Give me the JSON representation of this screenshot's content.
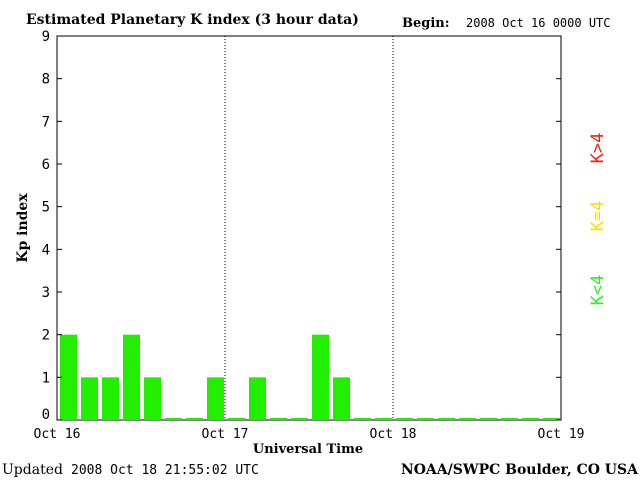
{
  "chart_data": {
    "type": "bar",
    "title": "Estimated Planetary K index (3 hour data)",
    "begin_label": "Begin:",
    "begin_value": "2008 Oct 16 0000 UTC",
    "xlabel": "Universal Time",
    "ylabel": "Kp index",
    "ylim": [
      0,
      9
    ],
    "yticks": [
      "0",
      "1",
      "2",
      "3",
      "4",
      "5",
      "6",
      "7",
      "8",
      "9"
    ],
    "xticks": [
      "Oct 16",
      "Oct 17",
      "Oct 18",
      "Oct 19"
    ],
    "days": 3,
    "intervals_per_day": 8,
    "values": [
      2,
      1,
      1,
      2,
      1,
      0,
      0,
      1,
      0,
      1,
      0,
      0,
      2,
      1,
      0,
      0,
      0,
      0,
      0,
      0,
      0,
      0,
      0,
      0
    ],
    "grid": false,
    "day_separators": true,
    "legend": [
      {
        "label": "K<4",
        "color": "#33ee33"
      },
      {
        "label": "K=4",
        "color": "#ffdd00"
      },
      {
        "label": "K>4",
        "color": "#ee2211"
      }
    ]
  },
  "footer": {
    "updated_label": "Updated",
    "updated_value": "2008 Oct 18 21:55:02 UTC",
    "source": "NOAA/SWPC Boulder, CO USA"
  },
  "colors": {
    "bar": "#22ee00",
    "axis": "#000000"
  }
}
